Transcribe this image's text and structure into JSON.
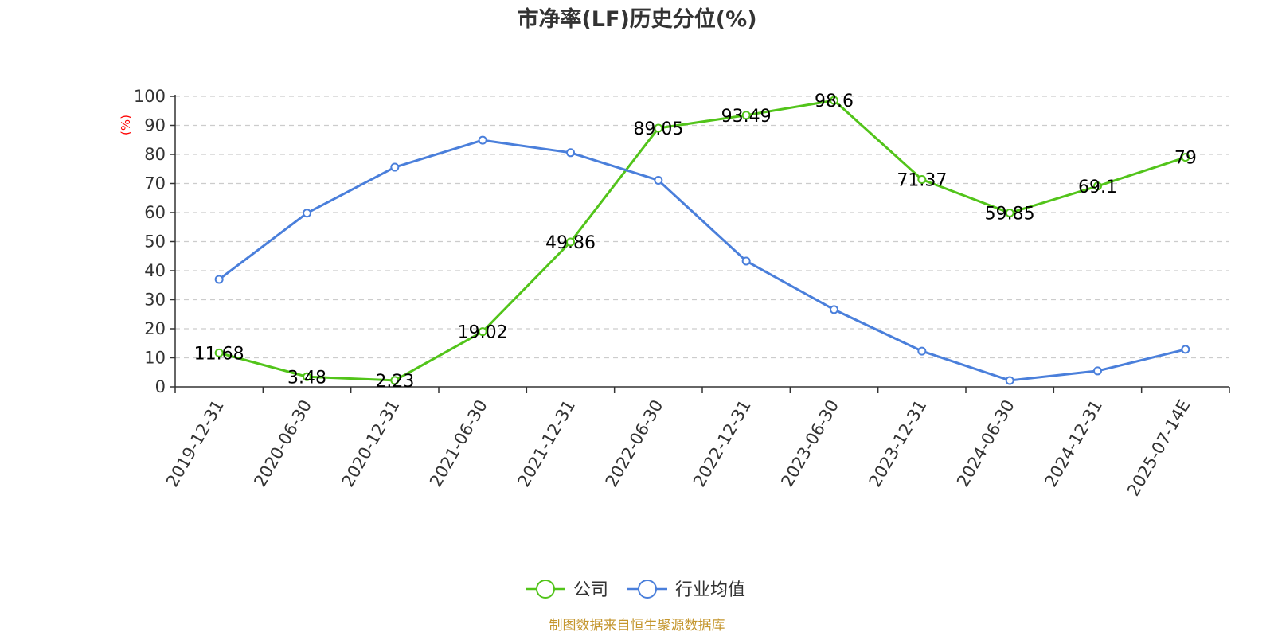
{
  "chart_data": {
    "type": "line",
    "title": "市净率(LF)历史分位(%)",
    "ylabel": "(%)",
    "xlabel": "",
    "ylim": [
      0,
      100
    ],
    "yticks": [
      0,
      10,
      20,
      30,
      40,
      50,
      60,
      70,
      80,
      90,
      100
    ],
    "grid": true,
    "legend_position": "bottom",
    "categories": [
      "2019-12-31",
      "2020-06-30",
      "2020-12-31",
      "2021-06-30",
      "2021-12-31",
      "2022-06-30",
      "2022-12-31",
      "2023-06-30",
      "2023-12-31",
      "2024-06-30",
      "2024-12-31",
      "2025-07-14E"
    ],
    "series": [
      {
        "name": "公司",
        "color": "#52c41a",
        "show_labels": true,
        "values": [
          11.68,
          3.48,
          2.23,
          19.02,
          49.86,
          89.05,
          93.49,
          98.6,
          71.37,
          59.85,
          69.1,
          79
        ]
      },
      {
        "name": "行业均值",
        "color": "#4a7fdb",
        "show_labels": false,
        "values": [
          37,
          59.8,
          75.6,
          84.9,
          80.6,
          71.1,
          43.3,
          26.6,
          12.3,
          2.2,
          5.5,
          12.9
        ]
      }
    ],
    "source": "制图数据来自恒生聚源数据库"
  }
}
